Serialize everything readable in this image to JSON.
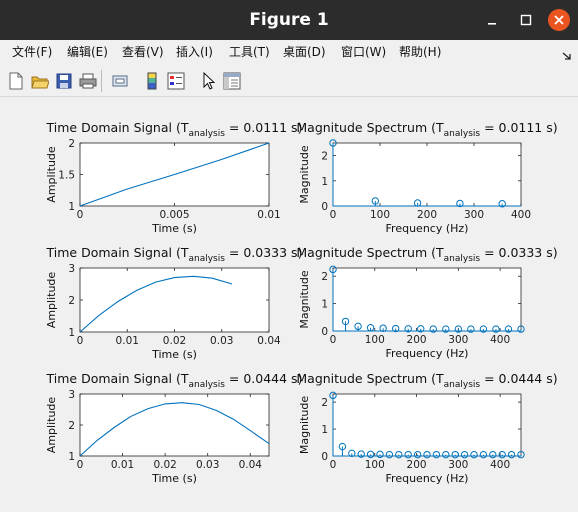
{
  "window": {
    "title": "Figure 1"
  },
  "window_controls": [
    "minimize",
    "maximize",
    "close"
  ],
  "menu": [
    "文件(F)",
    "编辑(E)",
    "查看(V)",
    "插入(I)",
    "工具(T)",
    "桌面(D)",
    "窗口(W)",
    "帮助(H)"
  ],
  "toolbar_icons": [
    "new-figure-icon",
    "open-file-icon",
    "save-icon",
    "print-icon",
    "link-icon",
    "colorbar-icon",
    "legend-icon",
    "pointer-icon",
    "property-editor-icon"
  ],
  "colors": {
    "line": "#0072bd",
    "stem": "#0072bd"
  },
  "chart_data": [
    {
      "type": "line",
      "title": "Time Domain Signal (T",
      "title_sub": "analysis",
      "title_rest": " = 0.0111 s)",
      "xlabel": "Time (s)",
      "ylabel": "Amplitude",
      "xlim": [
        0,
        0.01
      ],
      "ylim": [
        1,
        2
      ],
      "xticks": [
        "0",
        "0.005",
        "0.01"
      ],
      "yticks": [
        "1",
        "1.5",
        "2"
      ],
      "x": [
        0,
        0.0025,
        0.005,
        0.0075,
        0.01
      ],
      "y": [
        1,
        1.27,
        1.5,
        1.74,
        2
      ]
    },
    {
      "type": "stem",
      "title": "Magnitude Spectrum (T",
      "title_sub": "analysis",
      "title_rest": " = 0.0111 s)",
      "xlabel": "Frequency (Hz)",
      "ylabel": "Magnitude",
      "xlim": [
        0,
        400
      ],
      "ylim": [
        0,
        2.5
      ],
      "xticks": [
        "0",
        "100",
        "200",
        "300",
        "400"
      ],
      "yticks": [
        "0",
        "1",
        "2"
      ],
      "x": [
        0,
        90,
        180,
        270,
        360
      ],
      "y": [
        2.5,
        0.2,
        0.12,
        0.1,
        0.09
      ]
    },
    {
      "type": "line",
      "title": "Time Domain Signal (T",
      "title_sub": "analysis",
      "title_rest": " = 0.0333 s)",
      "xlabel": "Time (s)",
      "ylabel": "Amplitude",
      "xlim": [
        0,
        0.04
      ],
      "ylim": [
        1,
        3
      ],
      "xticks": [
        "0",
        "0.01",
        "0.02",
        "0.03",
        "0.04"
      ],
      "yticks": [
        "1",
        "2",
        "3"
      ],
      "x": [
        0,
        0.004,
        0.008,
        0.012,
        0.016,
        0.02,
        0.024,
        0.028,
        0.0322
      ],
      "y": [
        1,
        1.52,
        1.95,
        2.3,
        2.56,
        2.7,
        2.74,
        2.68,
        2.5
      ]
    },
    {
      "type": "stem",
      "title": "Magnitude Spectrum (T",
      "title_sub": "analysis",
      "title_rest": " = 0.0333 s)",
      "xlabel": "Frequency (Hz)",
      "ylabel": "Magnitude",
      "xlim": [
        0,
        450
      ],
      "ylim": [
        0,
        2.3
      ],
      "xticks": [
        "0",
        "100",
        "200",
        "300",
        "400"
      ],
      "yticks": [
        "0",
        "1",
        "2"
      ],
      "x": [
        0,
        30,
        60,
        90,
        120,
        150,
        180,
        210,
        240,
        270,
        300,
        330,
        360,
        390,
        420,
        450
      ],
      "y": [
        2.25,
        0.35,
        0.17,
        0.12,
        0.1,
        0.09,
        0.08,
        0.08,
        0.07,
        0.07,
        0.07,
        0.07,
        0.07,
        0.07,
        0.07,
        0.07
      ]
    },
    {
      "type": "line",
      "title": "Time Domain Signal (T",
      "title_sub": "analysis",
      "title_rest": " = 0.0444 s)",
      "xlabel": "Time (s)",
      "ylabel": "Amplitude",
      "xlim": [
        0,
        0.0444
      ],
      "ylim": [
        1,
        3
      ],
      "xticks": [
        "0",
        "0.01",
        "0.02",
        "0.03",
        "0.04"
      ],
      "yticks": [
        "1",
        "2",
        "3"
      ],
      "x": [
        0,
        0.004,
        0.008,
        0.012,
        0.016,
        0.02,
        0.024,
        0.028,
        0.032,
        0.036,
        0.04,
        0.0444
      ],
      "y": [
        1,
        1.5,
        1.92,
        2.28,
        2.53,
        2.68,
        2.72,
        2.66,
        2.47,
        2.19,
        1.82,
        1.4
      ]
    },
    {
      "type": "stem",
      "title": "Magnitude Spectrum (T",
      "title_sub": "analysis",
      "title_rest": " = 0.0444 s)",
      "xlabel": "Frequency (Hz)",
      "ylabel": "Magnitude",
      "xlim": [
        0,
        450
      ],
      "ylim": [
        0,
        2.3
      ],
      "xticks": [
        "0",
        "100",
        "200",
        "300",
        "400"
      ],
      "yticks": [
        "0",
        "1",
        "2"
      ],
      "x": [
        0,
        22.5,
        45,
        67.5,
        90,
        112.5,
        135,
        157.5,
        180,
        202.5,
        225,
        247.5,
        270,
        292.5,
        315,
        337.5,
        360,
        382.5,
        405,
        427.5,
        450
      ],
      "y": [
        2.25,
        0.35,
        0.1,
        0.07,
        0.06,
        0.06,
        0.05,
        0.05,
        0.05,
        0.05,
        0.05,
        0.05,
        0.05,
        0.05,
        0.05,
        0.05,
        0.05,
        0.05,
        0.05,
        0.05,
        0.05
      ]
    }
  ]
}
